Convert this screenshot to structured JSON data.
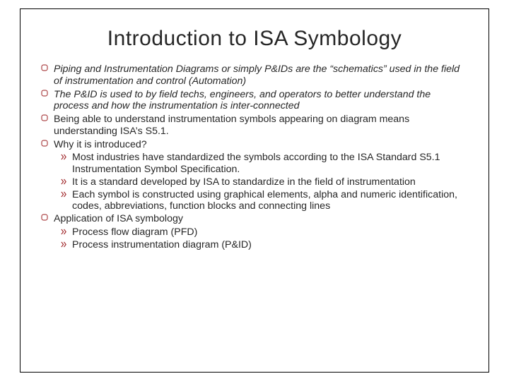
{
  "colors": {
    "text": "#262626",
    "bullet_stroke": "#9a1b1e",
    "sub_stroke": "#9a1b1e",
    "background": "#ffffff",
    "frame_border": "#000000"
  },
  "title": "Introduction to ISA Symbology",
  "bullets": [
    {
      "html": "<span class='italic'>Piping and Instrumentation Diagrams or simply P&IDs are the “schematics” used in the field of instrumentation and control (Automation)</span>",
      "subs": []
    },
    {
      "html": "<span class='italic'>The P&ID is used to by field techs, engineers, and operators to better understand the process and how the instrumentation is inter-connected</span>",
      "subs": []
    },
    {
      "html": "Being able to understand instrumentation symbols appearing on diagram means understanding ISA’s S5.1.",
      "subs": []
    },
    {
      "html": "Why it is introduced?",
      "subs": [
        "Most industries have standardized the symbols according to the ISA Standard S5.1 Instrumentation Symbol Specification.",
        "It is a standard developed by ISA to standardize in the field of instrumentation",
        "Each symbol is constructed using graphical elements, alpha and numeric identification, codes, abbreviations, function blocks and connecting lines"
      ]
    },
    {
      "html": "Application of ISA symbology",
      "subs": [
        "Process flow diagram (PFD)",
        "Process instrumentation diagram (P&ID)"
      ]
    }
  ]
}
